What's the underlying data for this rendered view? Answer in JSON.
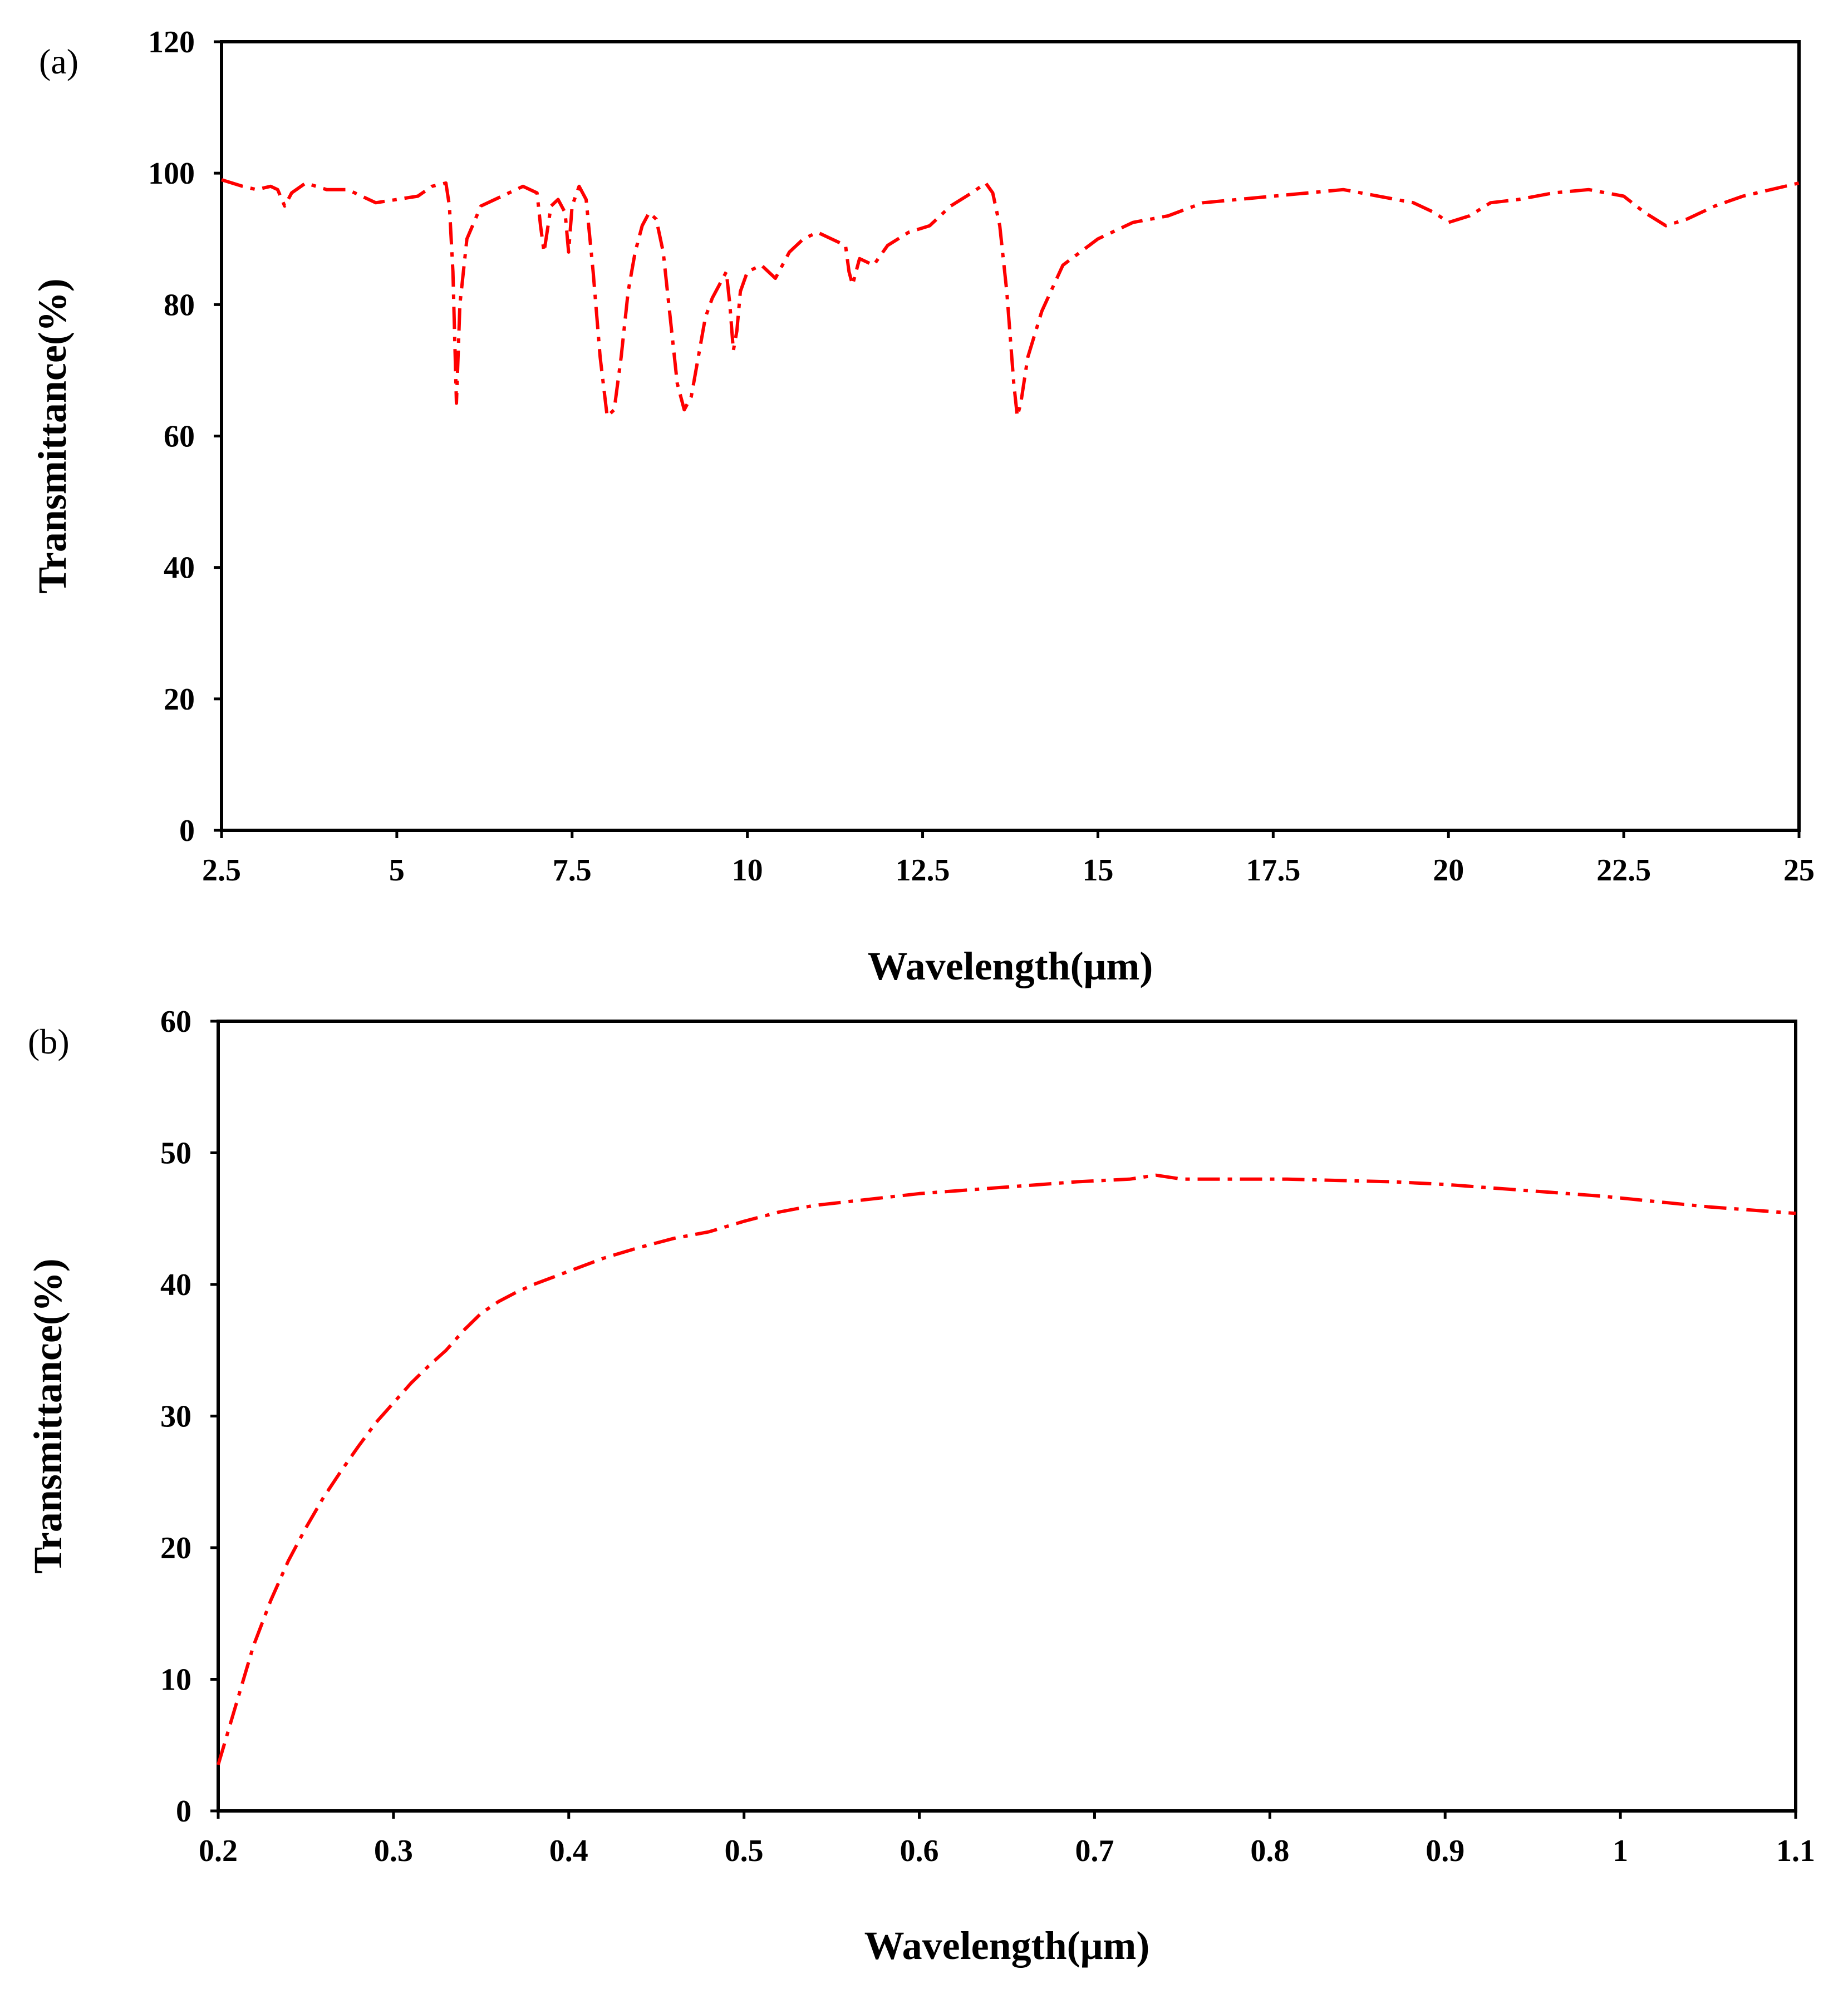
{
  "chart_data": [
    {
      "type": "line",
      "panel_label": "(a)",
      "xlabel": "Wavelength(μm)",
      "ylabel": "Transmittance(%)",
      "xlim": [
        2.5,
        25
      ],
      "ylim": [
        0,
        120
      ],
      "x_ticks": [
        2.5,
        5,
        7.5,
        10,
        12.5,
        15,
        17.5,
        20,
        22.5,
        25
      ],
      "y_ticks": [
        0,
        20,
        40,
        60,
        80,
        100,
        120
      ],
      "grid": false,
      "line_color": "#ff0000",
      "line_style": "dash-dot",
      "series": [
        {
          "name": "transmittance",
          "points": [
            [
              2.5,
              99
            ],
            [
              2.8,
              98
            ],
            [
              3.0,
              97.5
            ],
            [
              3.2,
              98
            ],
            [
              3.3,
              97.5
            ],
            [
              3.4,
              95
            ],
            [
              3.5,
              97
            ],
            [
              3.7,
              98.5
            ],
            [
              4.0,
              97.5
            ],
            [
              4.3,
              97.5
            ],
            [
              4.5,
              96.5
            ],
            [
              4.7,
              95.5
            ],
            [
              5.0,
              96
            ],
            [
              5.3,
              96.5
            ],
            [
              5.5,
              98
            ],
            [
              5.7,
              98.5
            ],
            [
              5.75,
              95
            ],
            [
              5.8,
              85
            ],
            [
              5.85,
              65
            ],
            [
              5.9,
              80
            ],
            [
              6.0,
              90
            ],
            [
              6.2,
              95
            ],
            [
              6.4,
              96
            ],
            [
              6.6,
              97
            ],
            [
              6.8,
              98
            ],
            [
              7.0,
              97
            ],
            [
              7.05,
              92
            ],
            [
              7.1,
              88
            ],
            [
              7.2,
              95
            ],
            [
              7.3,
              96
            ],
            [
              7.4,
              94
            ],
            [
              7.45,
              88
            ],
            [
              7.5,
              95
            ],
            [
              7.6,
              98
            ],
            [
              7.7,
              96
            ],
            [
              7.8,
              85
            ],
            [
              7.9,
              72
            ],
            [
              8.0,
              63
            ],
            [
              8.1,
              64
            ],
            [
              8.2,
              72
            ],
            [
              8.3,
              82
            ],
            [
              8.4,
              88
            ],
            [
              8.5,
              92
            ],
            [
              8.6,
              94
            ],
            [
              8.7,
              93
            ],
            [
              8.8,
              88
            ],
            [
              8.9,
              78
            ],
            [
              9.0,
              68
            ],
            [
              9.1,
              64
            ],
            [
              9.2,
              66
            ],
            [
              9.3,
              72
            ],
            [
              9.4,
              78
            ],
            [
              9.5,
              81
            ],
            [
              9.6,
              83
            ],
            [
              9.7,
              85
            ],
            [
              9.75,
              80
            ],
            [
              9.8,
              73
            ],
            [
              9.85,
              76
            ],
            [
              9.9,
              82
            ],
            [
              10.0,
              85
            ],
            [
              10.2,
              86
            ],
            [
              10.4,
              84
            ],
            [
              10.6,
              88
            ],
            [
              10.8,
              90
            ],
            [
              11.0,
              91
            ],
            [
              11.2,
              90
            ],
            [
              11.4,
              89
            ],
            [
              11.45,
              85
            ],
            [
              11.5,
              83
            ],
            [
              11.6,
              87
            ],
            [
              11.8,
              86
            ],
            [
              12.0,
              89
            ],
            [
              12.3,
              91
            ],
            [
              12.6,
              92
            ],
            [
              12.9,
              95
            ],
            [
              13.2,
              97
            ],
            [
              13.4,
              98.5
            ],
            [
              13.5,
              97
            ],
            [
              13.6,
              92
            ],
            [
              13.7,
              82
            ],
            [
              13.8,
              68
            ],
            [
              13.85,
              63
            ],
            [
              13.9,
              65
            ],
            [
              14.0,
              72
            ],
            [
              14.2,
              79
            ],
            [
              14.5,
              86
            ],
            [
              15.0,
              90
            ],
            [
              15.5,
              92.5
            ],
            [
              16.0,
              93.5
            ],
            [
              16.5,
              95.5
            ],
            [
              17.0,
              96
            ],
            [
              17.5,
              96.5
            ],
            [
              18.0,
              97
            ],
            [
              18.5,
              97.5
            ],
            [
              19.0,
              96.5
            ],
            [
              19.5,
              95.5
            ],
            [
              19.8,
              94
            ],
            [
              20.0,
              92.5
            ],
            [
              20.3,
              93.5
            ],
            [
              20.6,
              95.5
            ],
            [
              21.0,
              96
            ],
            [
              21.5,
              97
            ],
            [
              22.0,
              97.5
            ],
            [
              22.5,
              96.5
            ],
            [
              22.8,
              94
            ],
            [
              23.1,
              92
            ],
            [
              23.4,
              93
            ],
            [
              23.8,
              95
            ],
            [
              24.2,
              96.5
            ],
            [
              24.6,
              97.5
            ],
            [
              25.0,
              98.5
            ]
          ]
        }
      ]
    },
    {
      "type": "line",
      "panel_label": "(b)",
      "xlabel": "Wavelength(μm)",
      "ylabel": "Transmittance(%)",
      "xlim": [
        0.2,
        1.1
      ],
      "ylim": [
        0,
        60
      ],
      "x_ticks": [
        0.2,
        0.3,
        0.4,
        0.5,
        0.6,
        0.7,
        0.8,
        0.9,
        1.0,
        1.1
      ],
      "x_tick_labels": [
        "0.2",
        "0.3",
        "0.4",
        "0.5",
        "0.6",
        "0.7",
        "0.8",
        "0.9",
        "1",
        "1.1"
      ],
      "y_ticks": [
        0,
        10,
        20,
        30,
        40,
        50,
        60
      ],
      "grid": false,
      "line_color": "#ff0000",
      "line_style": "dash-dot",
      "series": [
        {
          "name": "transmittance",
          "points": [
            [
              0.2,
              3.5
            ],
            [
              0.21,
              8
            ],
            [
              0.22,
              12.5
            ],
            [
              0.23,
              16
            ],
            [
              0.24,
              19
            ],
            [
              0.25,
              21.5
            ],
            [
              0.26,
              23.8
            ],
            [
              0.27,
              25.8
            ],
            [
              0.28,
              27.7
            ],
            [
              0.29,
              29.5
            ],
            [
              0.3,
              31
            ],
            [
              0.31,
              32.5
            ],
            [
              0.32,
              33.8
            ],
            [
              0.33,
              35
            ],
            [
              0.34,
              36.5
            ],
            [
              0.35,
              37.8
            ],
            [
              0.36,
              38.7
            ],
            [
              0.37,
              39.4
            ],
            [
              0.38,
              40
            ],
            [
              0.39,
              40.5
            ],
            [
              0.4,
              41
            ],
            [
              0.42,
              42
            ],
            [
              0.44,
              42.8
            ],
            [
              0.46,
              43.5
            ],
            [
              0.48,
              44
            ],
            [
              0.5,
              44.8
            ],
            [
              0.52,
              45.5
            ],
            [
              0.54,
              46
            ],
            [
              0.56,
              46.3
            ],
            [
              0.58,
              46.6
            ],
            [
              0.6,
              46.9
            ],
            [
              0.63,
              47.2
            ],
            [
              0.66,
              47.5
            ],
            [
              0.69,
              47.8
            ],
            [
              0.72,
              48
            ],
            [
              0.735,
              48.3
            ],
            [
              0.75,
              48
            ],
            [
              0.78,
              48
            ],
            [
              0.81,
              48
            ],
            [
              0.84,
              47.9
            ],
            [
              0.87,
              47.8
            ],
            [
              0.9,
              47.6
            ],
            [
              0.93,
              47.3
            ],
            [
              0.96,
              47
            ],
            [
              0.99,
              46.7
            ],
            [
              1.02,
              46.3
            ],
            [
              1.05,
              45.9
            ],
            [
              1.08,
              45.6
            ],
            [
              1.1,
              45.4
            ]
          ]
        }
      ]
    }
  ]
}
